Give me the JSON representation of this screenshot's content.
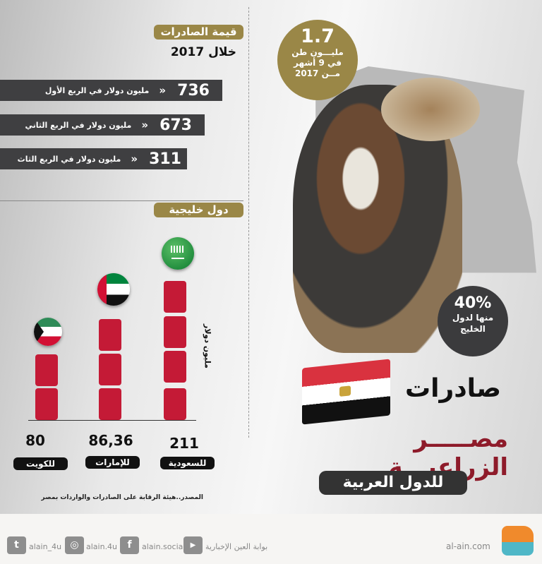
{
  "exports_value": {
    "title": "قيمة الصادرات",
    "subtitle": "خلال 2017",
    "rows": [
      {
        "value": "736",
        "label": "مليون دولار في  الربع الأول"
      },
      {
        "value": "673",
        "label": "مليون دولار في  الربع الثاني"
      },
      {
        "value": "311",
        "label": "مليون دولار في  الربع الثاث"
      }
    ]
  },
  "gulf": {
    "title": "دول خليجية",
    "unit": "مليون دولار",
    "countries": [
      {
        "name": "للكويت",
        "value": "80",
        "blocks": 2
      },
      {
        "name": "للإمارات",
        "value": "86,36",
        "blocks": 3
      },
      {
        "name": "للسعودية",
        "value": "211",
        "blocks": 4
      }
    ]
  },
  "source": "المصدر..هيئة الرقابة على الصادرات والواردات بمصر",
  "tonnage": {
    "value": "1.7",
    "line1": "مليـــون طن",
    "line2": "في 9 أشهر",
    "line3": "مــن 2017"
  },
  "gulf_share": {
    "value": "40%",
    "line1": "منها لدول",
    "line2": "الخليج"
  },
  "headline": {
    "line1": "صادرات",
    "line2": "مصـــــر الزراعيـــة",
    "line3": "للدول العربية"
  },
  "footer": {
    "twitter": "alain_4u",
    "instagram": "alain.4u",
    "facebook": "alain.social",
    "youtube": "بوابة العين الإخبارية",
    "site": "al-ain.com"
  },
  "colors": {
    "gold": "#9a8747",
    "bar": "#3f3f41",
    "block_red": "#c41a36",
    "headline_red": "#8e1b2a"
  }
}
